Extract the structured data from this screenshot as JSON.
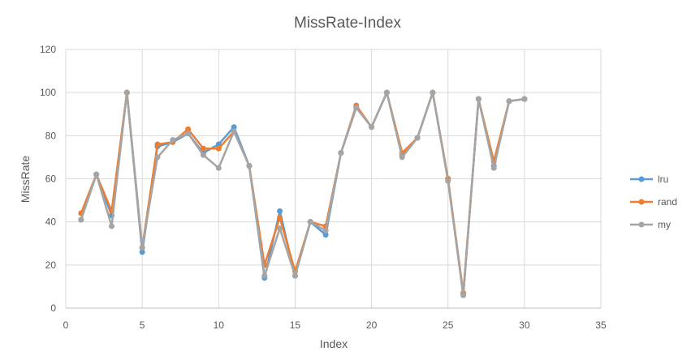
{
  "chart_data": {
    "type": "line",
    "title": "MissRate-Index",
    "xlabel": "Index",
    "ylabel": "MissRate",
    "xlim": [
      0,
      35
    ],
    "ylim": [
      0,
      120
    ],
    "xticks": [
      0,
      5,
      10,
      15,
      20,
      25,
      30,
      35
    ],
    "yticks": [
      0,
      20,
      40,
      60,
      80,
      100,
      120
    ],
    "grid": true,
    "legend_position": "right",
    "x": [
      1,
      2,
      3,
      4,
      5,
      6,
      7,
      8,
      9,
      10,
      11,
      12,
      13,
      14,
      15,
      16,
      17,
      18,
      19,
      20,
      21,
      22,
      23,
      24,
      25,
      26,
      27,
      28,
      29,
      30
    ],
    "series": [
      {
        "name": "lru",
        "color": "#5b9bd5",
        "values": [
          41,
          62,
          43,
          100,
          26,
          75,
          77,
          81,
          72,
          76,
          84,
          66,
          14,
          45,
          15,
          40,
          34,
          72,
          93,
          84,
          100,
          71,
          79,
          100,
          60,
          6,
          97,
          66,
          96,
          97
        ]
      },
      {
        "name": "rand",
        "color": "#ed7d31",
        "values": [
          44,
          62,
          45,
          100,
          28,
          76,
          77,
          83,
          74,
          74,
          82,
          66,
          20,
          42,
          17,
          40,
          38,
          72,
          94,
          84,
          100,
          72,
          79,
          100,
          60,
          7,
          97,
          68,
          96,
          97
        ]
      },
      {
        "name": "my",
        "color": "#a5a5a5",
        "values": [
          41,
          62,
          38,
          100,
          28,
          70,
          78,
          81,
          71,
          65,
          82,
          66,
          15,
          37,
          15,
          40,
          36,
          72,
          93,
          84,
          100,
          70,
          79,
          100,
          59,
          6,
          97,
          65,
          96,
          97
        ]
      }
    ]
  }
}
